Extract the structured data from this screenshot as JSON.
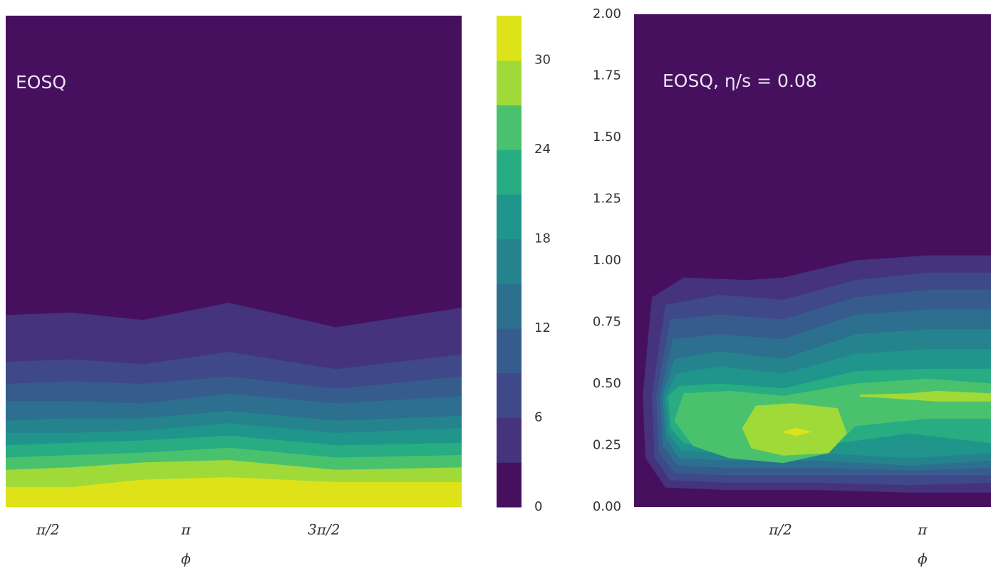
{
  "chart_data": [
    {
      "type": "contour",
      "annotation": "EOSQ",
      "xlabel": "ϕ",
      "xlim": [
        1.09,
        6.28
      ],
      "ylim": [
        0,
        2
      ],
      "xticks": [
        {
          "value": 1.5708,
          "label": "π/2"
        },
        {
          "value": 3.1416,
          "label": "π"
        },
        {
          "value": 4.7124,
          "label": "3π/2"
        }
      ],
      "contours": [
        {
          "level": 3,
          "x": [
            1.09,
            1.84,
            2.65,
            3.63,
            4.85,
            6.28,
            6.28,
            1.09
          ],
          "y": [
            0.78,
            0.79,
            0.76,
            0.83,
            0.73,
            0.81,
            0,
            0
          ]
        },
        {
          "level": 6,
          "x": [
            1.09,
            1.84,
            2.65,
            3.63,
            4.85,
            6.28,
            6.28,
            1.09
          ],
          "y": [
            0.59,
            0.6,
            0.58,
            0.63,
            0.56,
            0.62,
            0,
            0
          ]
        },
        {
          "level": 9,
          "x": [
            1.09,
            1.84,
            2.65,
            3.63,
            4.85,
            6.28,
            6.28,
            1.09
          ],
          "y": [
            0.5,
            0.51,
            0.5,
            0.53,
            0.48,
            0.53,
            0,
            0
          ]
        },
        {
          "level": 12,
          "x": [
            1.09,
            1.84,
            2.65,
            3.63,
            4.85,
            6.28,
            6.28,
            1.09
          ],
          "y": [
            0.43,
            0.43,
            0.42,
            0.46,
            0.42,
            0.45,
            0,
            0
          ]
        },
        {
          "level": 15,
          "x": [
            1.09,
            1.84,
            2.65,
            3.63,
            4.85,
            6.28,
            6.28,
            1.09
          ],
          "y": [
            0.35,
            0.36,
            0.36,
            0.39,
            0.35,
            0.37,
            0,
            0
          ]
        },
        {
          "level": 18,
          "x": [
            1.09,
            1.84,
            2.65,
            3.63,
            4.85,
            6.28,
            6.28,
            1.09
          ],
          "y": [
            0.3,
            0.3,
            0.31,
            0.34,
            0.3,
            0.32,
            0,
            0
          ]
        },
        {
          "level": 21,
          "x": [
            1.09,
            1.84,
            2.65,
            3.63,
            4.85,
            6.28,
            6.28,
            1.09
          ],
          "y": [
            0.25,
            0.26,
            0.27,
            0.29,
            0.25,
            0.26,
            0,
            0
          ]
        },
        {
          "level": 24,
          "x": [
            1.09,
            1.84,
            2.65,
            3.63,
            4.85,
            6.28,
            6.28,
            1.09
          ],
          "y": [
            0.2,
            0.21,
            0.22,
            0.24,
            0.2,
            0.21,
            0,
            0
          ]
        },
        {
          "level": 27,
          "x": [
            1.09,
            1.84,
            2.65,
            3.63,
            4.85,
            6.28,
            6.28,
            1.09
          ],
          "y": [
            0.15,
            0.16,
            0.18,
            0.19,
            0.15,
            0.16,
            0,
            0
          ]
        },
        {
          "level": 30,
          "x": [
            1.09,
            1.84,
            2.65,
            3.63,
            4.85,
            6.28,
            6.28,
            1.09
          ],
          "y": [
            0.08,
            0.08,
            0.11,
            0.12,
            0.1,
            0.1,
            0,
            0
          ]
        }
      ]
    },
    {
      "type": "colorbar",
      "ylim": [
        0,
        33
      ],
      "levels": [
        0,
        3,
        6,
        9,
        12,
        15,
        18,
        21,
        24,
        27,
        30,
        33
      ],
      "colors": [
        "#46105f",
        "#45337d",
        "#3f4889",
        "#365c8d",
        "#2c6f8e",
        "#25838e",
        "#1f958b",
        "#27ad81",
        "#4ac16d",
        "#a0da39",
        "#dde318"
      ],
      "yticks": [
        0,
        6,
        12,
        18,
        24,
        30
      ]
    },
    {
      "type": "contour",
      "annotation": "EOSQ,  η/s = 0.08",
      "xlabel": "ϕ",
      "xlim": [
        -0.05,
        3.9
      ],
      "ylim": [
        0,
        2
      ],
      "xticks": [
        {
          "value": 1.5708,
          "label": "π/2"
        },
        {
          "value": 3.1416,
          "label": "π"
        }
      ],
      "yticks": [
        {
          "value": 0,
          "label": "0.00"
        },
        {
          "value": 0.25,
          "label": "0.25"
        },
        {
          "value": 0.5,
          "label": "0.50"
        },
        {
          "value": 0.75,
          "label": "0.75"
        },
        {
          "value": 1,
          "label": "1.00"
        },
        {
          "value": 1.25,
          "label": "1.25"
        },
        {
          "value": 1.5,
          "label": "1.50"
        },
        {
          "value": 1.75,
          "label": "1.75"
        },
        {
          "value": 2,
          "label": "2.00"
        }
      ],
      "contours": [
        {
          "level": 3,
          "x": [
            0.05,
            0.15,
            0.5,
            1.2,
            1.6,
            2.4,
            3.2,
            3.9,
            3.9,
            3.0,
            2.0,
            1.0,
            0.3,
            0.08
          ],
          "y": [
            0.45,
            0.85,
            0.93,
            0.92,
            0.93,
            1.0,
            1.02,
            1.02,
            0.06,
            0.06,
            0.07,
            0.07,
            0.08,
            0.2
          ]
        },
        {
          "level": 6,
          "x": [
            0.15,
            0.3,
            0.9,
            1.6,
            2.4,
            3.2,
            3.9,
            3.9,
            3.0,
            2.0,
            1.0,
            0.35,
            0.18
          ],
          "y": [
            0.45,
            0.82,
            0.86,
            0.84,
            0.92,
            0.95,
            0.95,
            0.1,
            0.09,
            0.1,
            0.1,
            0.11,
            0.2
          ]
        },
        {
          "level": 9,
          "x": [
            0.2,
            0.35,
            0.9,
            1.6,
            2.4,
            3.2,
            3.9,
            3.9,
            3.0,
            2.0,
            1.0,
            0.4,
            0.23
          ],
          "y": [
            0.45,
            0.76,
            0.78,
            0.76,
            0.85,
            0.88,
            0.88,
            0.13,
            0.13,
            0.13,
            0.13,
            0.14,
            0.22
          ]
        },
        {
          "level": 12,
          "x": [
            0.24,
            0.38,
            0.9,
            1.6,
            2.4,
            3.2,
            3.9,
            3.9,
            3.0,
            2.0,
            1.0,
            0.43,
            0.27
          ],
          "y": [
            0.45,
            0.68,
            0.7,
            0.68,
            0.78,
            0.8,
            0.8,
            0.16,
            0.15,
            0.16,
            0.16,
            0.17,
            0.25
          ]
        },
        {
          "level": 15,
          "x": [
            0.27,
            0.4,
            0.9,
            1.6,
            2.4,
            3.2,
            3.9,
            3.9,
            3.0,
            2.0,
            1.0,
            0.45,
            0.3
          ],
          "y": [
            0.45,
            0.6,
            0.63,
            0.6,
            0.7,
            0.72,
            0.72,
            0.19,
            0.17,
            0.19,
            0.19,
            0.2,
            0.28
          ]
        },
        {
          "level": 18,
          "x": [
            0.3,
            0.42,
            0.9,
            1.6,
            2.4,
            3.2,
            3.9,
            3.9,
            3.0,
            2.0,
            1.0,
            0.48,
            0.33
          ],
          "y": [
            0.45,
            0.54,
            0.57,
            0.54,
            0.62,
            0.64,
            0.64,
            0.22,
            0.2,
            0.22,
            0.22,
            0.23,
            0.3
          ]
        },
        {
          "level": 21,
          "x": [
            0.33,
            0.45,
            0.9,
            1.6,
            2.4,
            3.2,
            3.9,
            3.9,
            3.0,
            2.0,
            1.0,
            0.5,
            0.36
          ],
          "y": [
            0.45,
            0.49,
            0.5,
            0.48,
            0.55,
            0.56,
            0.56,
            0.26,
            0.3,
            0.25,
            0.24,
            0.26,
            0.32
          ]
        },
        {
          "level": 24,
          "x": [
            0.4,
            0.5,
            1.0,
            1.6,
            2.4,
            3.2,
            3.9,
            3.9,
            3.2,
            2.4,
            2.1,
            1.6,
            1.0,
            0.6
          ],
          "y": [
            0.35,
            0.46,
            0.47,
            0.45,
            0.5,
            0.52,
            0.5,
            0.36,
            0.36,
            0.33,
            0.22,
            0.18,
            0.2,
            0.25
          ]
        },
        {
          "level": 27,
          "x": [
            1.15,
            1.3,
            1.7,
            2.2,
            2.3,
            2.1,
            1.6,
            1.25
          ],
          "y": [
            0.32,
            0.41,
            0.42,
            0.4,
            0.3,
            0.22,
            0.21,
            0.24
          ]
        },
        {
          "level": 27,
          "x": [
            2.45,
            3.0,
            3.3,
            3.9,
            3.9,
            3.3,
            2.45
          ],
          "y": [
            0.455,
            0.46,
            0.47,
            0.46,
            0.43,
            0.43,
            0.45
          ]
        },
        {
          "level": 30,
          "x": [
            1.6,
            1.75,
            1.9,
            1.75
          ],
          "y": [
            0.305,
            0.32,
            0.305,
            0.29
          ]
        }
      ]
    }
  ]
}
